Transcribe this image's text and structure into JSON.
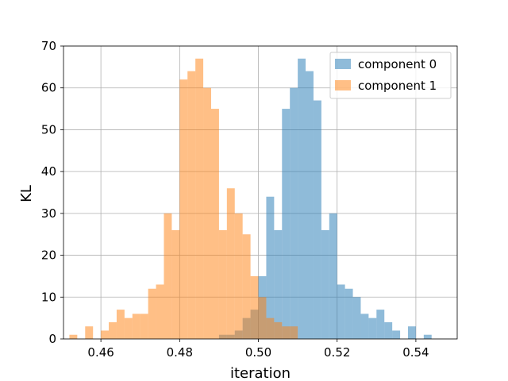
{
  "chart_data": {
    "type": "histogram",
    "xlabel": "iteration",
    "ylabel": "KL",
    "xlim": [
      0.4505,
      0.5505
    ],
    "ylim": [
      0,
      70
    ],
    "x_ticks": [
      0.46,
      0.48,
      0.5,
      0.52,
      0.54
    ],
    "x_tick_labels": [
      "0.46",
      "0.48",
      "0.50",
      "0.52",
      "0.54"
    ],
    "y_ticks": [
      0,
      10,
      20,
      30,
      40,
      50,
      60,
      70
    ],
    "y_tick_labels": [
      "0",
      "10",
      "20",
      "30",
      "40",
      "50",
      "60",
      "70"
    ],
    "grid": true,
    "legend_position": "top-right",
    "series": [
      {
        "name": "component 0",
        "color": "#1f77b4",
        "alpha": 0.5,
        "bin_edges": [
          0.49,
          0.492,
          0.494,
          0.496,
          0.498,
          0.5,
          0.502,
          0.504,
          0.506,
          0.508,
          0.51,
          0.512,
          0.514,
          0.516,
          0.518,
          0.52,
          0.522,
          0.524,
          0.526,
          0.528,
          0.53,
          0.532,
          0.534,
          0.536,
          0.538,
          0.54,
          0.542,
          0.544,
          0.546,
          0.548
        ],
        "counts": [
          1,
          1,
          2,
          5,
          7,
          15,
          34,
          26,
          55,
          60,
          67,
          64,
          57,
          26,
          30,
          13,
          12,
          10,
          6,
          5,
          7,
          4,
          2,
          0,
          3,
          0,
          1,
          0,
          0
        ]
      },
      {
        "name": "component 1",
        "color": "#ff7f0e",
        "alpha": 0.5,
        "bin_edges": [
          0.452,
          0.454,
          0.456,
          0.458,
          0.46,
          0.462,
          0.464,
          0.466,
          0.468,
          0.47,
          0.472,
          0.474,
          0.476,
          0.478,
          0.48,
          0.482,
          0.484,
          0.486,
          0.488,
          0.49,
          0.492,
          0.494,
          0.496,
          0.498,
          0.5,
          0.502,
          0.504,
          0.506,
          0.508,
          0.51
        ],
        "counts": [
          1,
          0,
          3,
          0,
          2,
          4,
          7,
          5,
          6,
          6,
          12,
          13,
          30,
          26,
          62,
          64,
          67,
          60,
          55,
          26,
          36,
          30,
          25,
          15,
          10,
          5,
          4,
          3,
          3
        ]
      }
    ]
  }
}
